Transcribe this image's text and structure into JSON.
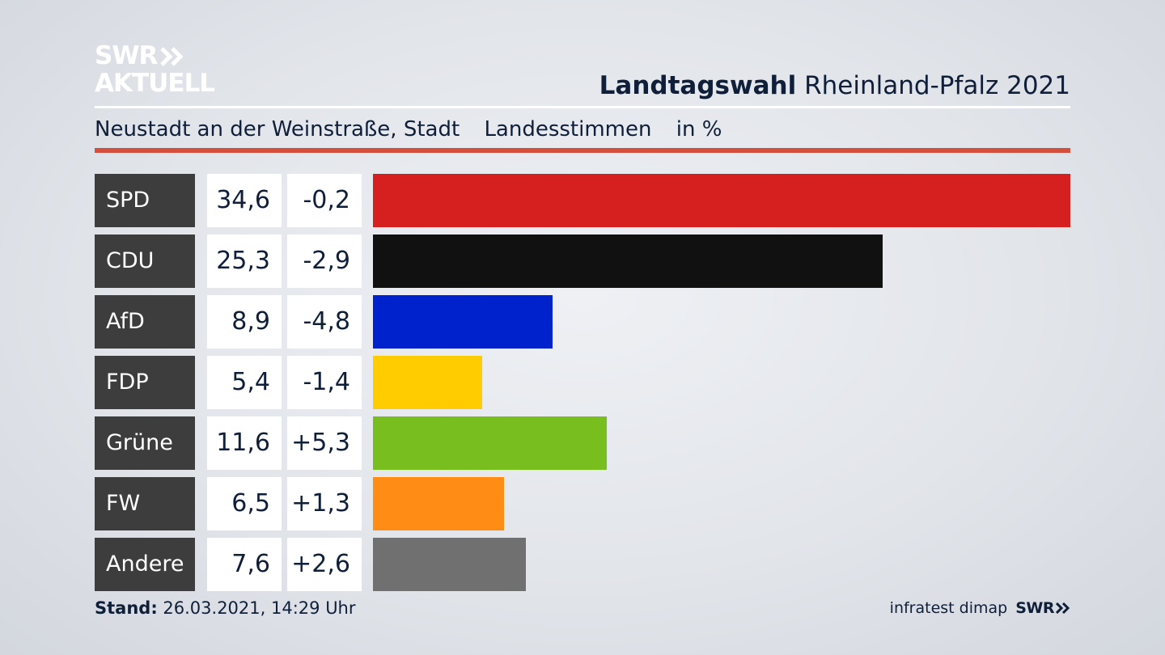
{
  "logo": {
    "line1": "SWR",
    "line2": "AKTUELL"
  },
  "header": {
    "title_bold": "Landtagswahl",
    "title_rest": "Rheinland-Pfalz 2021"
  },
  "subtitle": {
    "region": "Neustadt an der Weinstraße, Stadt",
    "vote_type": "Landesstimmen",
    "unit": "in %"
  },
  "footer": {
    "stand_label": "Stand:",
    "stand_value": "26.03.2021, 14:29 Uhr",
    "source": "infratest dimap",
    "brand": "SWR"
  },
  "chart_data": {
    "type": "bar",
    "orientation": "horizontal",
    "categories": [
      "SPD",
      "CDU",
      "AfD",
      "FDP",
      "Grüne",
      "FW",
      "Andere"
    ],
    "values": [
      34.6,
      25.3,
      8.9,
      5.4,
      11.6,
      6.5,
      7.6
    ],
    "value_labels": [
      "34,6",
      "25,3",
      "8,9",
      "5,4",
      "11,6",
      "6,5",
      "7,6"
    ],
    "change_labels": [
      "-0,2",
      "-2,9",
      "-4,8",
      "-1,4",
      "+5,3",
      "+1,3",
      "+2,6"
    ],
    "changes": [
      -0.2,
      -2.9,
      -4.8,
      -1.4,
      5.3,
      1.3,
      2.6
    ],
    "colors": [
      "#d61f1f",
      "#111111",
      "#0022cc",
      "#ffcc00",
      "#78be1e",
      "#ff8c15",
      "#707070"
    ],
    "xlim": [
      0,
      34.6
    ]
  }
}
